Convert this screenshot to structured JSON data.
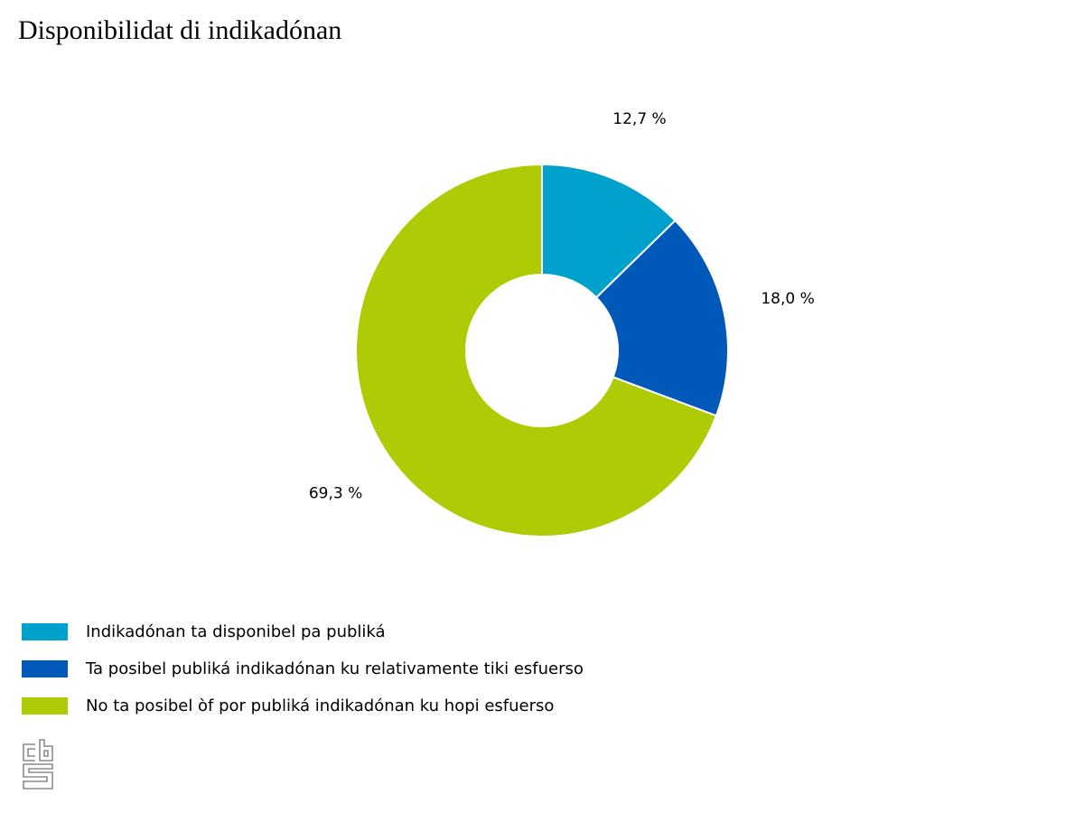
{
  "chart_data": {
    "type": "pie",
    "variant": "donut",
    "title": "Disponibilidat di indikadónan",
    "categories": [
      "Indikadónan ta disponibel pa publiká",
      "Ta posibel publiká indikadónan ku relativamente tiki esfuerso",
      "No ta posibel òf por publiká indikadónan ku hopi esfuerso"
    ],
    "values": [
      12.7,
      18.0,
      69.3
    ],
    "value_labels": [
      "12,7 %",
      "18,0 %",
      "69,3 %"
    ],
    "colors": [
      "#00a1cd",
      "#0058b8",
      "#afcb05"
    ],
    "legend_placement": "bottom-left",
    "start_angle": "top, clockwise"
  },
  "branding": {
    "logo": "cbs-logo"
  }
}
